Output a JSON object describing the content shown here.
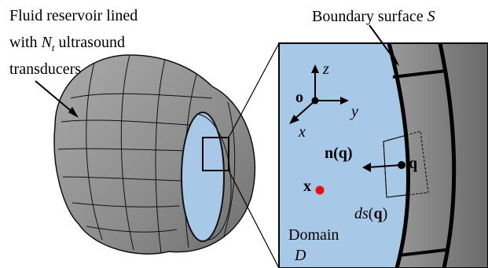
{
  "labels": {
    "reservoir_line1": "Fluid reservoir lined",
    "reservoir_line2_prefix": "with",
    "reservoir_N": "N",
    "reservoir_sub": "t",
    "reservoir_line2_suffix": "ultrasound",
    "reservoir_line3": "transducers",
    "boundary_text": "Boundary surface",
    "boundary_symbol": "S",
    "origin": "o",
    "axis_z": "z",
    "axis_y": "y",
    "axis_x": "x",
    "normal_n": "n",
    "normal_q": "(q)",
    "point_q": "q",
    "point_x": "x",
    "ds_d": "ds",
    "ds_paren_open": "(",
    "ds_q": "q",
    "ds_paren_close": ")",
    "domain_word": "Domain",
    "domain_symbol": "D"
  },
  "colors": {
    "fluid": "#a8c8e8",
    "surface": "#8a8a8a",
    "point_x": "#e81010",
    "ink": "#000000"
  }
}
